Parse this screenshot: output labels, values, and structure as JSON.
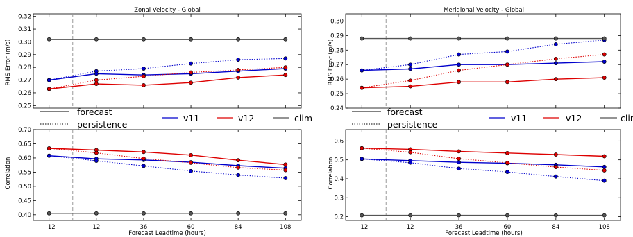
{
  "colors": {
    "v11": "#0000cc",
    "v12": "#dd0000",
    "clim": "#555555",
    "ref_line": "#999999"
  },
  "legend": {
    "style_entries": [
      {
        "label": "forecast",
        "style": "solid"
      },
      {
        "label": "persistence",
        "style": "dotted"
      }
    ],
    "series_entries": [
      "v11",
      "v12",
      "clim"
    ]
  },
  "chart_data": [
    {
      "type": "line",
      "title": "Zonal Velocity - Global",
      "xlabel": "",
      "ylabel": "RMS Error (m/s)",
      "xlim": [
        -20,
        116
      ],
      "ylim": [
        0.248,
        0.322
      ],
      "xticks": [
        -12,
        12,
        36,
        60,
        84,
        108
      ],
      "yticks": [
        0.25,
        0.26,
        0.27,
        0.28,
        0.29,
        0.3,
        0.31,
        0.32
      ],
      "ytick_labels": [
        "0.25",
        "0.26",
        "0.27",
        "0.28",
        "0.29",
        "0.30",
        "0.31",
        "0.32"
      ],
      "vline_x": 0,
      "x": [
        -12,
        12,
        36,
        60,
        84,
        108
      ],
      "series": [
        {
          "name": "v11",
          "kind": "forecast",
          "values": [
            0.27,
            0.275,
            0.274,
            0.275,
            0.277,
            0.279
          ]
        },
        {
          "name": "v11",
          "kind": "persistence",
          "values": [
            0.27,
            0.277,
            0.279,
            0.283,
            0.286,
            0.287
          ]
        },
        {
          "name": "v12",
          "kind": "forecast",
          "values": [
            0.263,
            0.267,
            0.266,
            0.268,
            0.272,
            0.274
          ]
        },
        {
          "name": "v12",
          "kind": "persistence",
          "values": [
            0.263,
            0.27,
            0.273,
            0.276,
            0.278,
            0.28
          ]
        },
        {
          "name": "clim",
          "kind": "forecast",
          "values": [
            0.302,
            0.302,
            0.302,
            0.302,
            0.302,
            0.302
          ]
        }
      ]
    },
    {
      "type": "line",
      "title": "Meridional Velocity - Global",
      "xlabel": "",
      "ylabel": "RMS Error (m/s)",
      "xlim": [
        -20,
        116
      ],
      "ylim": [
        0.24,
        0.305
      ],
      "xticks": [
        -12,
        12,
        36,
        60,
        84,
        108
      ],
      "yticks": [
        0.24,
        0.25,
        0.26,
        0.27,
        0.28,
        0.29,
        0.3
      ],
      "ytick_labels": [
        "0.24",
        "0.25",
        "0.26",
        "0.27",
        "0.28",
        "0.29",
        "0.30"
      ],
      "vline_x": 0,
      "x": [
        -12,
        12,
        36,
        60,
        84,
        108
      ],
      "series": [
        {
          "name": "v11",
          "kind": "forecast",
          "values": [
            0.266,
            0.267,
            0.27,
            0.27,
            0.271,
            0.272
          ]
        },
        {
          "name": "v11",
          "kind": "persistence",
          "values": [
            0.266,
            0.27,
            0.277,
            0.279,
            0.284,
            0.287
          ]
        },
        {
          "name": "v12",
          "kind": "forecast",
          "values": [
            0.254,
            0.255,
            0.258,
            0.258,
            0.26,
            0.261
          ]
        },
        {
          "name": "v12",
          "kind": "persistence",
          "values": [
            0.254,
            0.259,
            0.266,
            0.27,
            0.274,
            0.277
          ]
        },
        {
          "name": "clim",
          "kind": "forecast",
          "values": [
            0.288,
            0.288,
            0.288,
            0.288,
            0.288,
            0.288
          ]
        }
      ]
    },
    {
      "type": "line",
      "title": "",
      "xlabel": "Forecast Leadtime (hours)",
      "ylabel": "Correlation",
      "xlim": [
        -20,
        116
      ],
      "ylim": [
        0.38,
        0.7
      ],
      "xticks": [
        -12,
        12,
        36,
        60,
        84,
        108
      ],
      "yticks": [
        0.4,
        0.45,
        0.5,
        0.55,
        0.6,
        0.65,
        0.7
      ],
      "ytick_labels": [
        "0.40",
        "0.45",
        "0.50",
        "0.55",
        "0.60",
        "0.65",
        "0.70"
      ],
      "vline_x": 0,
      "x": [
        -12,
        12,
        36,
        60,
        84,
        108
      ],
      "series": [
        {
          "name": "v11",
          "kind": "forecast",
          "values": [
            0.608,
            0.597,
            0.593,
            0.585,
            0.573,
            0.564
          ]
        },
        {
          "name": "v11",
          "kind": "persistence",
          "values": [
            0.608,
            0.59,
            0.572,
            0.554,
            0.54,
            0.529
          ]
        },
        {
          "name": "v12",
          "kind": "forecast",
          "values": [
            0.634,
            0.628,
            0.621,
            0.61,
            0.592,
            0.577
          ]
        },
        {
          "name": "v12",
          "kind": "persistence",
          "values": [
            0.634,
            0.618,
            0.598,
            0.583,
            0.566,
            0.557
          ]
        },
        {
          "name": "clim",
          "kind": "forecast",
          "values": [
            0.405,
            0.405,
            0.405,
            0.405,
            0.405,
            0.405
          ]
        }
      ]
    },
    {
      "type": "line",
      "title": "",
      "xlabel": "Forecast Leadtime (hours)",
      "ylabel": "Correlation",
      "xlim": [
        -20,
        116
      ],
      "ylim": [
        0.18,
        0.66
      ],
      "xticks": [
        -12,
        12,
        36,
        60,
        84,
        108
      ],
      "yticks": [
        0.2,
        0.3,
        0.4,
        0.5,
        0.6
      ],
      "ytick_labels": [
        "0.2",
        "0.3",
        "0.4",
        "0.5",
        "0.6"
      ],
      "vline_x": 0,
      "x": [
        -12,
        12,
        36,
        60,
        84,
        108
      ],
      "series": [
        {
          "name": "v11",
          "kind": "forecast",
          "values": [
            0.505,
            0.496,
            0.487,
            0.482,
            0.474,
            0.463
          ]
        },
        {
          "name": "v11",
          "kind": "persistence",
          "values": [
            0.505,
            0.485,
            0.454,
            0.436,
            0.412,
            0.39
          ]
        },
        {
          "name": "v12",
          "kind": "forecast",
          "values": [
            0.562,
            0.556,
            0.545,
            0.536,
            0.528,
            0.519
          ]
        },
        {
          "name": "v12",
          "kind": "persistence",
          "values": [
            0.562,
            0.54,
            0.506,
            0.484,
            0.462,
            0.444
          ]
        },
        {
          "name": "clim",
          "kind": "forecast",
          "values": [
            0.207,
            0.207,
            0.207,
            0.207,
            0.207,
            0.207
          ]
        }
      ]
    }
  ]
}
